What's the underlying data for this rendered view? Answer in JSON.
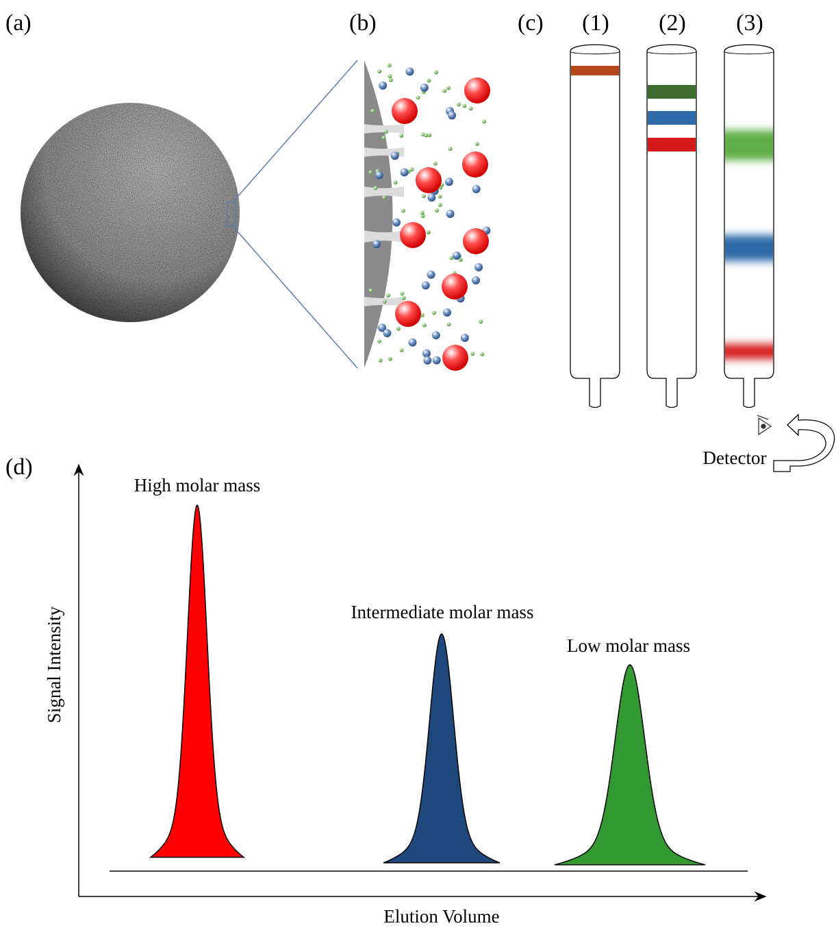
{
  "panels": {
    "a": {
      "label": "(a)"
    },
    "b": {
      "label": "(b)"
    },
    "c": {
      "label": "(c)",
      "columns": [
        "(1)",
        "(2)",
        "(3)"
      ],
      "detector": "Detector"
    },
    "d": {
      "label": "(d)",
      "peaks": [
        "High molar mass",
        "Intermediate molar mass",
        "Low molar mass"
      ],
      "x_axis": "Elution Volume",
      "y_axis": "Signal Intensity"
    }
  }
}
